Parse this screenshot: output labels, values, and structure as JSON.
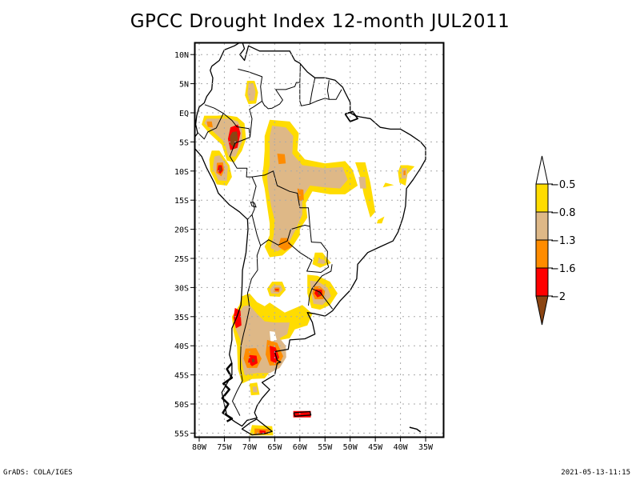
{
  "title": "GPCC Drought Index 12-month JUL2011",
  "map": {
    "region": "South America",
    "lon_range": [
      -80,
      -30
    ],
    "lat_range": [
      -56,
      12
    ],
    "lat_ticks": [
      {
        "value": 10,
        "label": "10N"
      },
      {
        "value": 5,
        "label": "5N"
      },
      {
        "value": 0,
        "label": "EQ"
      },
      {
        "value": -5,
        "label": "5S"
      },
      {
        "value": -10,
        "label": "10S"
      },
      {
        "value": -15,
        "label": "15S"
      },
      {
        "value": -20,
        "label": "20S"
      },
      {
        "value": -25,
        "label": "25S"
      },
      {
        "value": -30,
        "label": "30S"
      },
      {
        "value": -35,
        "label": "35S"
      },
      {
        "value": -40,
        "label": "40S"
      },
      {
        "value": -45,
        "label": "45S"
      },
      {
        "value": -50,
        "label": "50S"
      },
      {
        "value": -55,
        "label": "55S"
      }
    ],
    "lon_ticks": [
      {
        "value": -80,
        "label": "80W"
      },
      {
        "value": -75,
        "label": "75W"
      },
      {
        "value": -70,
        "label": "70W"
      },
      {
        "value": -65,
        "label": "65W"
      },
      {
        "value": -60,
        "label": "60W"
      },
      {
        "value": -55,
        "label": "55W"
      },
      {
        "value": -50,
        "label": "50W"
      },
      {
        "value": -45,
        "label": "45W"
      },
      {
        "value": -40,
        "label": "40W"
      },
      {
        "value": -35,
        "label": "35W"
      }
    ],
    "gridlines": true
  },
  "colorbar": {
    "levels": [
      {
        "label": "-0.5",
        "color": "#ffdc00"
      },
      {
        "label": "-0.8",
        "color": "#deb887"
      },
      {
        "label": "-1.3",
        "color": "#ff8c00"
      },
      {
        "label": "-1.6",
        "color": "#ff0000"
      },
      {
        "label": "-2",
        "color": "#8b4513"
      }
    ],
    "top_extension_color": "#ffffff",
    "bottom_extension_color": "#8b4513",
    "bins": [
      {
        "range": "> -0.5",
        "color": "#ffffff"
      },
      {
        "range": "-0.8 to -0.5",
        "color": "#ffdc00"
      },
      {
        "range": "-1.3 to -0.8",
        "color": "#deb887"
      },
      {
        "range": "-1.6 to -1.3",
        "color": "#ff8c00"
      },
      {
        "range": "-2 to -1.6",
        "color": "#ff0000"
      },
      {
        "range": "< -2",
        "color": "#8b4513"
      }
    ]
  },
  "drought_regions": [
    {
      "name": "ecuador-peru-north",
      "lon": -72.5,
      "lat": -4.5,
      "max_class": "< -2"
    },
    {
      "name": "peru-central",
      "lon": -76,
      "lat": -9.5,
      "max_class": "< -2"
    },
    {
      "name": "colombia-south",
      "lon": -69.5,
      "lat": 3.5,
      "max_class": "-1.3 to -0.8"
    },
    {
      "name": "amazon-central",
      "lon": -64,
      "lat": -7,
      "max_class": "-1.6 to -1.3"
    },
    {
      "name": "bolivia-brazil",
      "lon": -60,
      "lat": -13,
      "max_class": "-1.6 to -1.3"
    },
    {
      "name": "chaco",
      "lon": -63,
      "lat": -22.5,
      "max_class": "-1.6 to -1.3"
    },
    {
      "name": "uruguay-rs",
      "lon": -56,
      "lat": -30.5,
      "max_class": "< -2"
    },
    {
      "name": "central-argentina",
      "lon": -65,
      "lat": -30.5,
      "max_class": "-2 to -1.6"
    },
    {
      "name": "patagonia-north",
      "lon": -68,
      "lat": -42,
      "max_class": "< -2"
    },
    {
      "name": "chile-central",
      "lon": -72.5,
      "lat": -37,
      "max_class": "-2 to -1.6"
    },
    {
      "name": "falklands",
      "lon": -59.5,
      "lat": -51.5,
      "max_class": "-2 to -1.6"
    },
    {
      "name": "tierra-del-fuego",
      "lon": -67.5,
      "lat": -54.5,
      "max_class": "-2 to -1.6"
    },
    {
      "name": "brazil-northeast-coast",
      "lon": -39,
      "lat": -10.5,
      "max_class": "-1.6 to -1.3"
    }
  ],
  "footer": {
    "left": "GrADS: COLA/IGES",
    "right": "2021-05-13-11:15"
  }
}
